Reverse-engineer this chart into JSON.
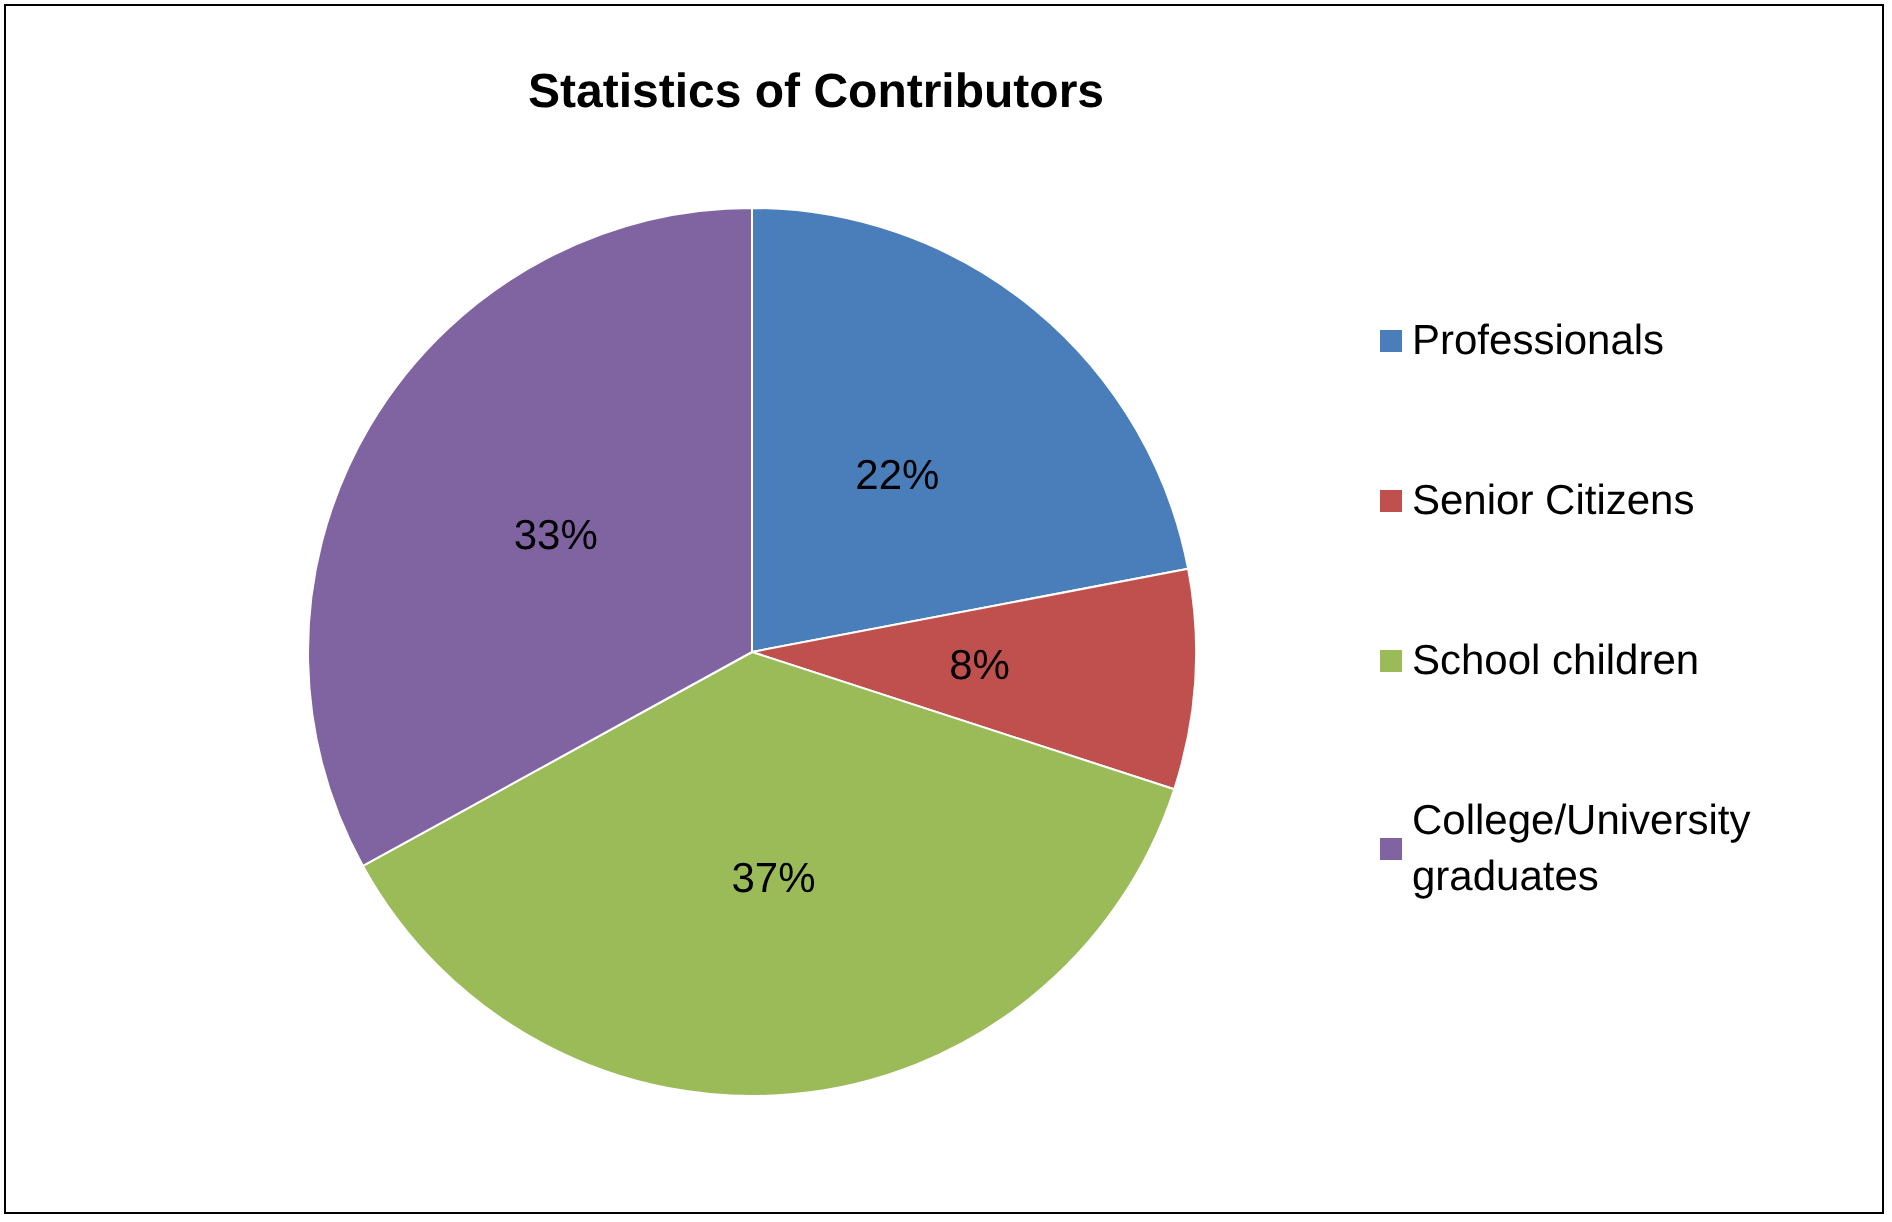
{
  "chart_data": {
    "type": "pie",
    "title": "Statistics of Contributors",
    "categories": [
      "Professionals",
      "Senior Citizens",
      "School children",
      "College/University graduates"
    ],
    "values": [
      22,
      8,
      37,
      33
    ],
    "colors": [
      "#4a7ebb",
      "#c0504d",
      "#9bbb59",
      "#8064a2"
    ],
    "value_labels": [
      "22%",
      "8%",
      "37%",
      "33%"
    ],
    "legend": "right"
  }
}
